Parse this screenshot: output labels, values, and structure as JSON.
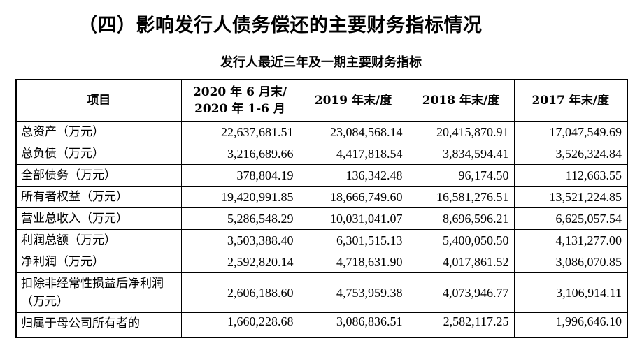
{
  "heading": "（四）影响发行人债务偿还的主要财务指标情况",
  "table_title": "发行人最近三年及一期主要财务指标",
  "columns": {
    "item": "项目",
    "c2020_line1": "2020 年 6 月末/",
    "c2020_line2": "2020 年 1-6 月",
    "c2019": "2019 年末/度",
    "c2018": "2018 年末/度",
    "c2017": "2017 年末/度"
  },
  "rows": [
    {
      "label": "总资产（万元）",
      "v2020": "22,637,681.51",
      "v2019": "23,084,568.14",
      "v2018": "20,415,870.91",
      "v2017": "17,047,549.69"
    },
    {
      "label": "总负债（万元）",
      "v2020": "3,216,689.66",
      "v2019": "4,417,818.54",
      "v2018": "3,834,594.41",
      "v2017": "3,526,324.84"
    },
    {
      "label": "全部债务（万元）",
      "v2020": "378,804.19",
      "v2019": "136,342.48",
      "v2018": "96,174.50",
      "v2017": "112,663.55"
    },
    {
      "label": "所有者权益（万元）",
      "v2020": "19,420,991.85",
      "v2019": "18,666,749.60",
      "v2018": "16,581,276.51",
      "v2017": "13,521,224.85"
    },
    {
      "label": "营业总收入（万元）",
      "v2020": "5,286,548.29",
      "v2019": "10,031,041.07",
      "v2018": "8,696,596.21",
      "v2017": "6,625,057.54"
    },
    {
      "label": "利润总额（万元）",
      "v2020": "3,503,388.40",
      "v2019": "6,301,515.13",
      "v2018": "5,400,050.50",
      "v2017": "4,131,277.00"
    },
    {
      "label": "净利润（万元）",
      "v2020": "2,592,820.14",
      "v2019": "4,718,631.90",
      "v2018": "4,017,861.52",
      "v2017": "3,086,070.85"
    },
    {
      "label": "扣除非经常性损益后净利润（万元）",
      "v2020": "2,606,188.60",
      "v2019": "4,753,959.38",
      "v2018": "4,073,946.77",
      "v2017": "3,106,914.11"
    },
    {
      "label": "归属于母公司所有者的",
      "v2020": "1,660,228.68",
      "v2019": "3,086,836.51",
      "v2018": "2,582,117.25",
      "v2017": "1,996,646.10"
    }
  ]
}
